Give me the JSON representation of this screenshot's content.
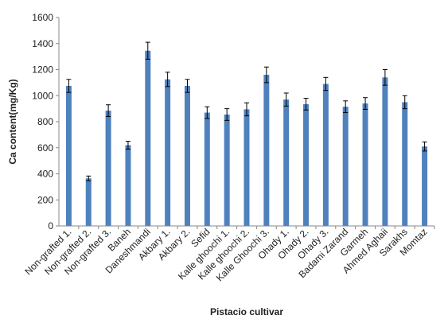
{
  "chart_data": {
    "type": "bar",
    "title": "",
    "xlabel": "Pistacio cultivar",
    "ylabel": "Ca content(mg/Kg)",
    "ylim": [
      0,
      1600
    ],
    "yticks": [
      0,
      200,
      400,
      600,
      800,
      1000,
      1200,
      1400,
      1600
    ],
    "grid": false,
    "legend": "none",
    "bar_color": "#4f81bd",
    "categories": [
      "Non-grafted 1.",
      "Non-grafted 2.",
      "Non-grafted 3.",
      "Baneh",
      "Daneshmandi",
      "Akbary 1.",
      "Akbary 2.",
      "Sefid",
      "Kalle ghoochi 1.",
      "Kalle ghoochi 2.",
      "Kalle Ghoochi 3.",
      "Ohady 1.",
      "Ohady 2.",
      "Ohady 3.",
      "Badami Zarand",
      "Garmeh",
      "Ahmed Aghaii",
      "Sarakhs",
      "Momtaz"
    ],
    "values": [
      1075,
      365,
      885,
      620,
      1345,
      1125,
      1075,
      870,
      855,
      895,
      1160,
      970,
      935,
      1090,
      915,
      940,
      1140,
      950,
      610
    ],
    "error": [
      50,
      18,
      45,
      30,
      65,
      55,
      50,
      45,
      45,
      50,
      60,
      50,
      45,
      50,
      45,
      45,
      60,
      50,
      35
    ]
  }
}
